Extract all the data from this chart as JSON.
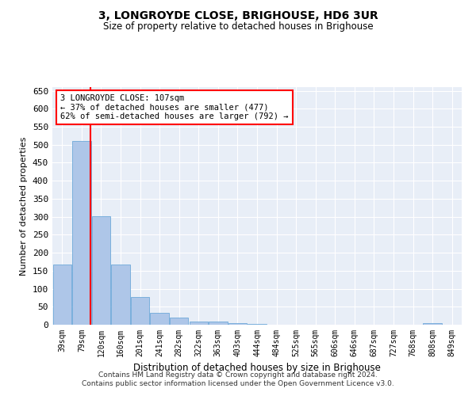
{
  "title": "3, LONGROYDE CLOSE, BRIGHOUSE, HD6 3UR",
  "subtitle": "Size of property relative to detached houses in Brighouse",
  "xlabel": "Distribution of detached houses by size in Brighouse",
  "ylabel": "Number of detached properties",
  "categories": [
    "39sqm",
    "79sqm",
    "120sqm",
    "160sqm",
    "201sqm",
    "241sqm",
    "282sqm",
    "322sqm",
    "363sqm",
    "403sqm",
    "444sqm",
    "484sqm",
    "525sqm",
    "565sqm",
    "606sqm",
    "646sqm",
    "687sqm",
    "727sqm",
    "768sqm",
    "808sqm",
    "849sqm"
  ],
  "values": [
    168,
    510,
    302,
    168,
    76,
    32,
    20,
    8,
    8,
    5,
    2,
    1,
    1,
    0,
    0,
    0,
    0,
    0,
    0,
    5,
    0
  ],
  "bar_color": "#aec6e8",
  "bar_edge_color": "#5a9fd4",
  "property_line_x": 1.45,
  "annotation_text": "3 LONGROYDE CLOSE: 107sqm\n← 37% of detached houses are smaller (477)\n62% of semi-detached houses are larger (792) →",
  "annotation_box_color": "white",
  "annotation_box_edge_color": "red",
  "vline_color": "red",
  "ylim": [
    0,
    660
  ],
  "yticks": [
    0,
    50,
    100,
    150,
    200,
    250,
    300,
    350,
    400,
    450,
    500,
    550,
    600,
    650
  ],
  "background_color": "#e8eef7",
  "footer_line1": "Contains HM Land Registry data © Crown copyright and database right 2024.",
  "footer_line2": "Contains public sector information licensed under the Open Government Licence v3.0."
}
